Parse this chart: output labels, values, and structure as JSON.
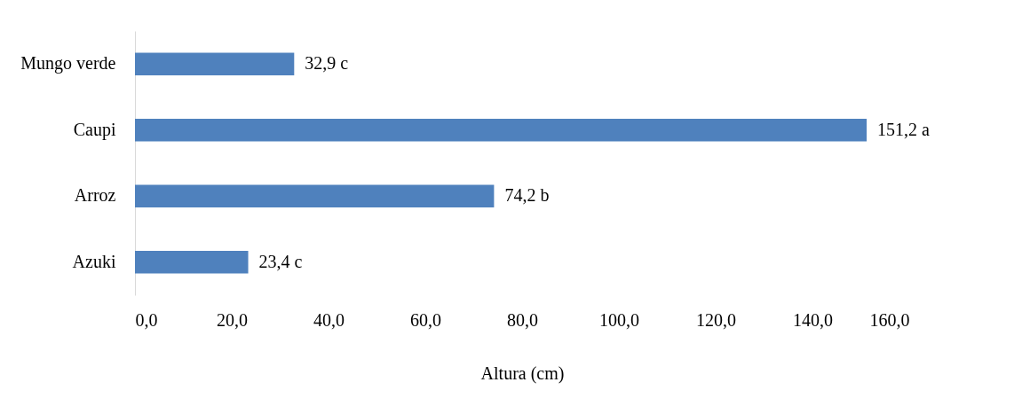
{
  "chart_data": {
    "type": "bar",
    "orientation": "horizontal",
    "xlabel": "Altura (cm)",
    "categories": [
      "Mungo verde",
      "Caupi",
      "Arroz",
      "Azuki"
    ],
    "values": [
      32.9,
      151.2,
      74.2,
      23.4
    ],
    "value_labels": [
      "32,9 c",
      "151,2 a",
      "74,2 b",
      "23,4 c"
    ],
    "color": "#4f81bd",
    "xlim": [
      0,
      160
    ],
    "xticks": [
      {
        "value": 0,
        "label": "0,0"
      },
      {
        "value": 20,
        "label": "20,0"
      },
      {
        "value": 40,
        "label": "40,0"
      },
      {
        "value": 60,
        "label": "60,0"
      },
      {
        "value": 80,
        "label": "80,0"
      },
      {
        "value": 100,
        "label": "100,0"
      },
      {
        "value": 120,
        "label": "120,0"
      },
      {
        "value": 140,
        "label": "140,0"
      },
      {
        "value": 160,
        "label": "160,0"
      }
    ],
    "grid": false
  }
}
